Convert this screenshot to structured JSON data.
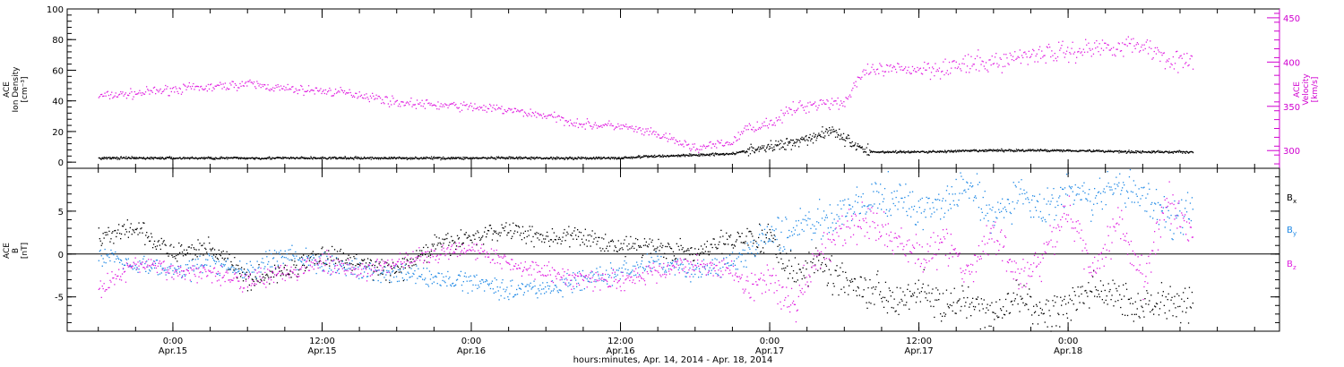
{
  "chart_data": [
    {
      "type": "scatter",
      "panel": "top",
      "ylabel_left": [
        "ACE",
        "Ion Density",
        "[cm⁻³]"
      ],
      "ylabel_right": [
        "ACE",
        "Velocity",
        "[km/s]"
      ],
      "ylim_left": [
        -4,
        100
      ],
      "yticks_left": [
        0,
        20,
        40,
        60,
        80,
        100
      ],
      "ylim_right": [
        280,
        460
      ],
      "yticks_right": [
        300,
        350,
        400,
        450
      ],
      "colors": {
        "density": "#000000",
        "velocity": "#e020e0"
      },
      "series": [
        {
          "name": "Ion Density",
          "axis": "left",
          "color": "#000000",
          "x": [
            -6,
            0,
            6,
            12,
            18,
            24,
            30,
            36,
            38,
            42,
            45,
            48,
            50,
            52,
            53,
            54,
            56,
            60,
            66,
            72,
            78,
            82
          ],
          "y": [
            3,
            3,
            3,
            3,
            3,
            3,
            3,
            3,
            4,
            5,
            6,
            10,
            14,
            18,
            22,
            15,
            7,
            7,
            8,
            8,
            7,
            7
          ]
        },
        {
          "name": "Velocity",
          "axis": "right",
          "color": "#e020e0",
          "x": [
            -6,
            -3,
            0,
            3,
            6,
            9,
            12,
            15,
            18,
            21,
            24,
            27,
            30,
            33,
            36,
            39,
            42,
            45,
            46,
            48,
            50,
            52,
            54,
            55,
            56,
            58,
            60,
            63,
            66,
            69,
            72,
            75,
            78,
            80,
            82
          ],
          "y": [
            362,
            365,
            370,
            372,
            376,
            370,
            368,
            364,
            355,
            352,
            350,
            346,
            340,
            330,
            328,
            318,
            303,
            310,
            325,
            332,
            348,
            355,
            355,
            380,
            390,
            392,
            393,
            396,
            400,
            410,
            412,
            418,
            420,
            405,
            398
          ]
        }
      ]
    },
    {
      "type": "scatter",
      "panel": "bottom",
      "ylabel": [
        "ACE",
        "B",
        "[nT]"
      ],
      "ylim": [
        -9,
        10
      ],
      "yticks": [
        -5,
        0,
        5
      ],
      "zero_line": true,
      "series": [
        {
          "name": "Bx",
          "color": "#000000",
          "x": [
            -6,
            -3,
            0,
            3,
            6,
            9,
            12,
            15,
            18,
            21,
            24,
            27,
            30,
            33,
            36,
            39,
            42,
            45,
            46,
            48,
            50,
            52,
            54,
            56,
            58,
            60,
            62,
            64,
            66,
            68,
            70,
            72,
            74,
            76,
            78,
            80,
            82
          ],
          "y": [
            2,
            3,
            0,
            1,
            -3,
            -2,
            0,
            -1,
            -2,
            1,
            2,
            3,
            2,
            2,
            1,
            1,
            0,
            2,
            2,
            2,
            -2,
            -1,
            -3,
            -4,
            -5,
            -4,
            -6,
            -6,
            -7,
            -5,
            -7,
            -6,
            -4,
            -5,
            -6,
            -5,
            -6
          ]
        },
        {
          "name": "By",
          "color": "#1e88e5",
          "x": [
            -6,
            -3,
            0,
            3,
            6,
            9,
            12,
            15,
            18,
            21,
            24,
            27,
            30,
            33,
            36,
            39,
            42,
            45,
            46,
            48,
            50,
            52,
            54,
            56,
            58,
            60,
            62,
            64,
            66,
            68,
            70,
            72,
            74,
            76,
            78,
            80,
            82
          ],
          "y": [
            0,
            -1,
            -2,
            -1,
            -2,
            0,
            -1,
            -2,
            -2,
            -3,
            -3,
            -4,
            -4,
            -3,
            -2,
            -1,
            -2,
            -1,
            0,
            2,
            3,
            4,
            5,
            6,
            7,
            5,
            6,
            8,
            4,
            7,
            5,
            8,
            6,
            8,
            7,
            4,
            5
          ]
        },
        {
          "name": "Bz",
          "color": "#e020e0",
          "x": [
            -6,
            -3,
            0,
            3,
            6,
            9,
            12,
            15,
            18,
            21,
            24,
            27,
            30,
            33,
            36,
            39,
            42,
            45,
            46,
            48,
            50,
            52,
            54,
            56,
            58,
            60,
            62,
            64,
            66,
            68,
            70,
            72,
            74,
            76,
            78,
            80,
            82
          ],
          "y": [
            -4,
            -1,
            -2,
            -2,
            -3,
            -2,
            -1,
            -2,
            -1,
            0,
            1,
            -1,
            -2,
            -3,
            -3,
            -2,
            -1,
            -2,
            -4,
            -3,
            -6,
            0,
            3,
            4,
            2,
            0,
            1,
            -2,
            3,
            -3,
            0,
            5,
            -2,
            4,
            -3,
            6,
            3
          ]
        }
      ],
      "legend": [
        "B",
        "B",
        "B"
      ],
      "legend_subs": [
        "x",
        "y",
        "z"
      ]
    }
  ],
  "xaxis": {
    "xlim": [
      -8.5,
      89
    ],
    "ticks": [
      {
        "hours": 0,
        "time": "0:00",
        "date": "Apr.15"
      },
      {
        "hours": 12,
        "time": "12:00",
        "date": "Apr.15"
      },
      {
        "hours": 24,
        "time": "0:00",
        "date": "Apr.16"
      },
      {
        "hours": 36,
        "time": "12:00",
        "date": "Apr.16"
      },
      {
        "hours": 48,
        "time": "0:00",
        "date": "Apr.17"
      },
      {
        "hours": 60,
        "time": "12:00",
        "date": "Apr.17"
      },
      {
        "hours": 72,
        "time": "0:00",
        "date": "Apr.18"
      }
    ],
    "xlabel": "hours:minutes, Apr. 14, 2014 - Apr. 18, 2014"
  }
}
